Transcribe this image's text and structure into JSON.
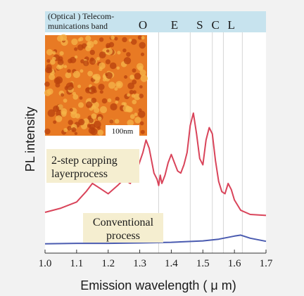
{
  "chart_data": {
    "type": "line",
    "xlabel": "Emission wavelength ( μ m)",
    "ylabel": "PL intensity",
    "xlim": [
      1.0,
      1.7
    ],
    "x_ticks": [
      "1.0",
      "1.1",
      "1.2",
      "1.3",
      "1.4",
      "1.5",
      "1.6",
      "1.7"
    ],
    "ylim": [
      0,
      1
    ],
    "band_header": {
      "label": "(Optical ) Telecom-\nmunications band",
      "bands": [
        {
          "name": "O",
          "x": 1.31
        },
        {
          "name": "E",
          "x": 1.41
        },
        {
          "name": "S",
          "x": 1.49
        },
        {
          "name": "C",
          "x": 1.54
        },
        {
          "name": "L",
          "x": 1.59
        }
      ],
      "color": "#c7e3ee"
    },
    "band_lines": [
      1.36,
      1.46,
      1.53,
      1.565,
      1.625
    ],
    "series": [
      {
        "name": "2-step capping layerprocess",
        "color": "#d9445a",
        "x": [
          1.0,
          1.05,
          1.1,
          1.13,
          1.15,
          1.17,
          1.2,
          1.23,
          1.25,
          1.27,
          1.29,
          1.31,
          1.32,
          1.33,
          1.345,
          1.355,
          1.36,
          1.365,
          1.37,
          1.38,
          1.39,
          1.4,
          1.41,
          1.42,
          1.43,
          1.44,
          1.45,
          1.46,
          1.47,
          1.48,
          1.49,
          1.5,
          1.51,
          1.52,
          1.53,
          1.54,
          1.55,
          1.56,
          1.57,
          1.58,
          1.59,
          1.6,
          1.62,
          1.65,
          1.7
        ],
        "y": [
          0.17,
          0.19,
          0.22,
          0.27,
          0.31,
          0.29,
          0.26,
          0.3,
          0.33,
          0.31,
          0.37,
          0.46,
          0.52,
          0.48,
          0.36,
          0.33,
          0.3,
          0.35,
          0.31,
          0.35,
          0.41,
          0.45,
          0.41,
          0.37,
          0.36,
          0.4,
          0.46,
          0.59,
          0.65,
          0.55,
          0.43,
          0.4,
          0.52,
          0.58,
          0.55,
          0.42,
          0.32,
          0.27,
          0.26,
          0.31,
          0.28,
          0.23,
          0.18,
          0.16,
          0.155
        ]
      },
      {
        "name": "Conventional process",
        "color": "#4a5bb0",
        "x": [
          1.0,
          1.1,
          1.2,
          1.3,
          1.4,
          1.5,
          1.55,
          1.6,
          1.62,
          1.65,
          1.7
        ],
        "y": [
          0.018,
          0.02,
          0.02,
          0.022,
          0.025,
          0.032,
          0.04,
          0.055,
          0.06,
          0.045,
          0.03
        ]
      }
    ],
    "annotations": [
      {
        "text": "2-step capping\nlayerprocess",
        "color": "#f5eed0"
      },
      {
        "text": "Conventional\nprocess",
        "color": "#f5eed0"
      }
    ],
    "inset": {
      "type": "AFM image",
      "scale_bar": "100nm",
      "colors": [
        "#b8420e",
        "#e87a24",
        "#f6b64a"
      ]
    }
  }
}
